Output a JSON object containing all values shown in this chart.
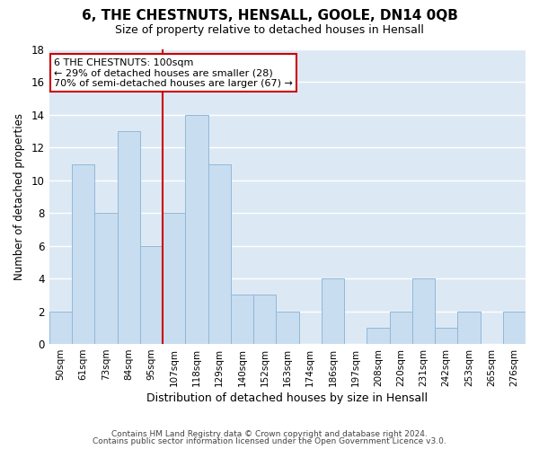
{
  "title": "6, THE CHESTNUTS, HENSALL, GOOLE, DN14 0QB",
  "subtitle": "Size of property relative to detached houses in Hensall",
  "xlabel": "Distribution of detached houses by size in Hensall",
  "ylabel": "Number of detached properties",
  "bin_labels": [
    "50sqm",
    "61sqm",
    "73sqm",
    "84sqm",
    "95sqm",
    "107sqm",
    "118sqm",
    "129sqm",
    "140sqm",
    "152sqm",
    "163sqm",
    "174sqm",
    "186sqm",
    "197sqm",
    "208sqm",
    "220sqm",
    "231sqm",
    "242sqm",
    "253sqm",
    "265sqm",
    "276sqm"
  ],
  "bar_heights": [
    2,
    11,
    8,
    13,
    6,
    8,
    14,
    11,
    3,
    3,
    2,
    0,
    4,
    0,
    1,
    2,
    4,
    1,
    2,
    0,
    2
  ],
  "bar_color": "#c8ddf0",
  "bar_edge_color": "#92b8d8",
  "grid_color": "#ffffff",
  "axes_bg_color": "#dce9f5",
  "fig_bg_color": "#ffffff",
  "annotation_text": "6 THE CHESTNUTS: 100sqm\n← 29% of detached houses are smaller (28)\n70% of semi-detached houses are larger (67) →",
  "vline_x_index": 4,
  "vline_color": "#cc0000",
  "annotation_box_edge": "#cc0000",
  "ylim": [
    0,
    18
  ],
  "yticks": [
    0,
    2,
    4,
    6,
    8,
    10,
    12,
    14,
    16,
    18
  ],
  "footer1": "Contains HM Land Registry data © Crown copyright and database right 2024.",
  "footer2": "Contains public sector information licensed under the Open Government Licence v3.0."
}
